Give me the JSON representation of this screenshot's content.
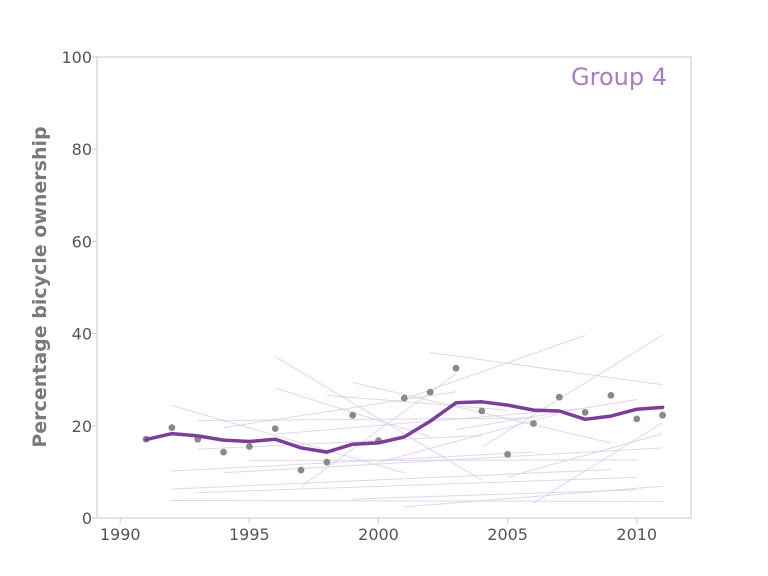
{
  "chart_data": {
    "type": "line",
    "title": "",
    "annotation": "Group 4",
    "xlabel": "",
    "ylabel": "Percentage bicycle ownership",
    "xlim": [
      1989.1,
      2012.1
    ],
    "ylim": [
      0,
      100
    ],
    "xticks": [
      1990,
      1995,
      2000,
      2005,
      2010
    ],
    "yticks": [
      0,
      20,
      40,
      60,
      80,
      100
    ],
    "grid": false,
    "colors": {
      "mean_line": "#7b3f9a",
      "points": "#8a8a8a",
      "background_lines": "#d9c7e6",
      "annotation": "#a77fbd",
      "frame": "#c9c9c9"
    },
    "series": [
      {
        "style": "thick-line",
        "x": [
          1991,
          1992,
          1993,
          1994,
          1995,
          1996,
          1997,
          1998,
          1999,
          2000,
          2001,
          2002,
          2003,
          2004,
          2005,
          2006,
          2007,
          2008,
          2009,
          2010,
          2011
        ],
        "y": [
          17,
          18.3,
          17.8,
          16.9,
          16.6,
          17.1,
          15.2,
          14.3,
          16,
          16.3,
          17.6,
          21,
          25,
          25.2,
          24.5,
          23.4,
          23.2,
          21.4,
          22.1,
          23.6,
          24
        ]
      },
      {
        "style": "points",
        "x": [
          1991,
          1992,
          1993,
          1994,
          1995,
          1996,
          1997,
          1998,
          1999,
          2000,
          2001,
          2002,
          2003,
          2004,
          2005,
          2006,
          2007,
          2008,
          2009,
          2010,
          2011
        ],
        "y": [
          17.1,
          19.6,
          17.1,
          14.3,
          15.5,
          19.4,
          10.4,
          12.1,
          22.3,
          16.8,
          26,
          27.3,
          32.5,
          23.2,
          13.8,
          20.5,
          26.2,
          22.9,
          26.6,
          21.5,
          22.3
        ]
      }
    ],
    "background_lines": [
      {
        "x": [
          1992,
          2011
        ],
        "y": [
          3.8,
          3.6
        ]
      },
      {
        "x": [
          1993,
          2010
        ],
        "y": [
          5.5,
          8.8
        ]
      },
      {
        "x": [
          1992,
          2009
        ],
        "y": [
          6.3,
          10.5
        ]
      },
      {
        "x": [
          1994,
          2011
        ],
        "y": [
          9.8,
          15.2
        ]
      },
      {
        "x": [
          1992,
          2006
        ],
        "y": [
          10.2,
          14.3
        ]
      },
      {
        "x": [
          1995,
          2010
        ],
        "y": [
          12.5,
          12.6
        ]
      },
      {
        "x": [
          1993,
          2004
        ],
        "y": [
          14.9,
          17.9
        ]
      },
      {
        "x": [
          1996,
          2008
        ],
        "y": [
          18.2,
          23.8
        ]
      },
      {
        "x": [
          1993,
          2006
        ],
        "y": [
          21.1,
          21.7
        ]
      },
      {
        "x": [
          1992,
          2001
        ],
        "y": [
          24.4,
          9.8
        ]
      },
      {
        "x": [
          1996,
          2002
        ],
        "y": [
          28.2,
          17.6
        ]
      },
      {
        "x": [
          1998,
          2005
        ],
        "y": [
          26.6,
          23.4
        ]
      },
      {
        "x": [
          2002,
          2011
        ],
        "y": [
          35.9,
          28.9
        ]
      },
      {
        "x": [
          2001,
          2008
        ],
        "y": [
          25.8,
          39.6
        ]
      },
      {
        "x": [
          2004,
          2011
        ],
        "y": [
          15.4,
          39.7
        ]
      },
      {
        "x": [
          2000,
          2007
        ],
        "y": [
          12.1,
          22.6
        ]
      },
      {
        "x": [
          1997,
          2003
        ],
        "y": [
          6.8,
          31.3
        ]
      },
      {
        "x": [
          1999,
          2009
        ],
        "y": [
          29.4,
          16.3
        ]
      },
      {
        "x": [
          2003,
          2010
        ],
        "y": [
          19.2,
          25.7
        ]
      },
      {
        "x": [
          2005,
          2011
        ],
        "y": [
          8.9,
          18.3
        ]
      },
      {
        "x": [
          1994,
          2003
        ],
        "y": [
          19.6,
          27.4
        ]
      },
      {
        "x": [
          1999,
          2010
        ],
        "y": [
          4.1,
          6.1
        ]
      },
      {
        "x": [
          2001,
          2011
        ],
        "y": [
          2.4,
          6.9
        ]
      },
      {
        "x": [
          1996,
          2004
        ],
        "y": [
          35,
          8.2
        ]
      },
      {
        "x": [
          2006,
          2011
        ],
        "y": [
          3.2,
          20.7
        ]
      }
    ]
  }
}
